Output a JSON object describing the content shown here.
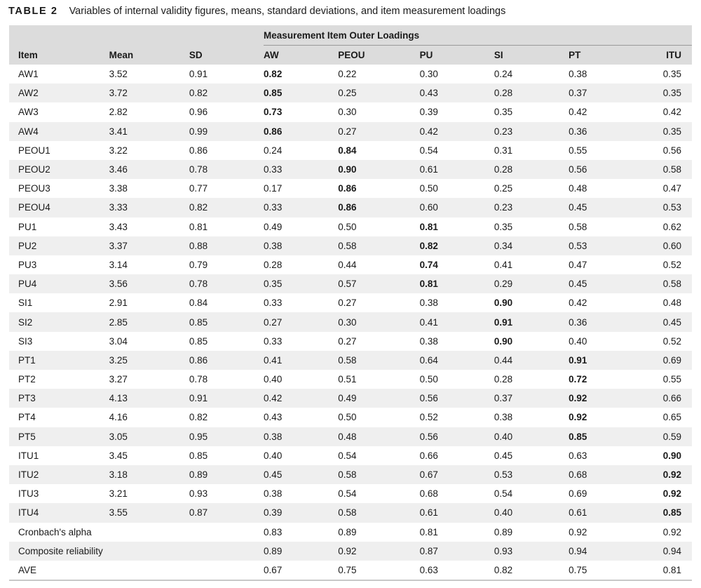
{
  "caption": {
    "label": "TABLE 2",
    "text": "Variables of internal validity figures, means, standard deviations, and item measurement loadings"
  },
  "group_header": "Measurement Item Outer Loadings",
  "columns": [
    "Item",
    "Mean",
    "SD",
    "AW",
    "PEOU",
    "PU",
    "SI",
    "PT",
    "ITU"
  ],
  "rows": [
    {
      "cells": [
        "AW1",
        "3.52",
        "0.91",
        "0.82",
        "0.22",
        "0.30",
        "0.24",
        "0.38",
        "0.35"
      ],
      "bold": 3
    },
    {
      "cells": [
        "AW2",
        "3.72",
        "0.82",
        "0.85",
        "0.25",
        "0.43",
        "0.28",
        "0.37",
        "0.35"
      ],
      "bold": 3
    },
    {
      "cells": [
        "AW3",
        "2.82",
        "0.96",
        "0.73",
        "0.30",
        "0.39",
        "0.35",
        "0.42",
        "0.42"
      ],
      "bold": 3
    },
    {
      "cells": [
        "AW4",
        "3.41",
        "0.99",
        "0.86",
        "0.27",
        "0.42",
        "0.23",
        "0.36",
        "0.35"
      ],
      "bold": 3
    },
    {
      "cells": [
        "PEOU1",
        "3.22",
        "0.86",
        "0.24",
        "0.84",
        "0.54",
        "0.31",
        "0.55",
        "0.56"
      ],
      "bold": 4
    },
    {
      "cells": [
        "PEOU2",
        "3.46",
        "0.78",
        "0.33",
        "0.90",
        "0.61",
        "0.28",
        "0.56",
        "0.58"
      ],
      "bold": 4
    },
    {
      "cells": [
        "PEOU3",
        "3.38",
        "0.77",
        "0.17",
        "0.86",
        "0.50",
        "0.25",
        "0.48",
        "0.47"
      ],
      "bold": 4
    },
    {
      "cells": [
        "PEOU4",
        "3.33",
        "0.82",
        "0.33",
        "0.86",
        "0.60",
        "0.23",
        "0.45",
        "0.53"
      ],
      "bold": 4
    },
    {
      "cells": [
        "PU1",
        "3.43",
        "0.81",
        "0.49",
        "0.50",
        "0.81",
        "0.35",
        "0.58",
        "0.62"
      ],
      "bold": 5
    },
    {
      "cells": [
        "PU2",
        "3.37",
        "0.88",
        "0.38",
        "0.58",
        "0.82",
        "0.34",
        "0.53",
        "0.60"
      ],
      "bold": 5
    },
    {
      "cells": [
        "PU3",
        "3.14",
        "0.79",
        "0.28",
        "0.44",
        "0.74",
        "0.41",
        "0.47",
        "0.52"
      ],
      "bold": 5
    },
    {
      "cells": [
        "PU4",
        "3.56",
        "0.78",
        "0.35",
        "0.57",
        "0.81",
        "0.29",
        "0.45",
        "0.58"
      ],
      "bold": 5
    },
    {
      "cells": [
        "SI1",
        "2.91",
        "0.84",
        "0.33",
        "0.27",
        "0.38",
        "0.90",
        "0.42",
        "0.48"
      ],
      "bold": 6
    },
    {
      "cells": [
        "SI2",
        "2.85",
        "0.85",
        "0.27",
        "0.30",
        "0.41",
        "0.91",
        "0.36",
        "0.45"
      ],
      "bold": 6
    },
    {
      "cells": [
        "SI3",
        "3.04",
        "0.85",
        "0.33",
        "0.27",
        "0.38",
        "0.90",
        "0.40",
        "0.52"
      ],
      "bold": 6
    },
    {
      "cells": [
        "PT1",
        "3.25",
        "0.86",
        "0.41",
        "0.58",
        "0.64",
        "0.44",
        "0.91",
        "0.69"
      ],
      "bold": 7
    },
    {
      "cells": [
        "PT2",
        "3.27",
        "0.78",
        "0.40",
        "0.51",
        "0.50",
        "0.28",
        "0.72",
        "0.55"
      ],
      "bold": 7
    },
    {
      "cells": [
        "PT3",
        "4.13",
        "0.91",
        "0.42",
        "0.49",
        "0.56",
        "0.37",
        "0.92",
        "0.66"
      ],
      "bold": 7
    },
    {
      "cells": [
        "PT4",
        "4.16",
        "0.82",
        "0.43",
        "0.50",
        "0.52",
        "0.38",
        "0.92",
        "0.65"
      ],
      "bold": 7
    },
    {
      "cells": [
        "PT5",
        "3.05",
        "0.95",
        "0.38",
        "0.48",
        "0.56",
        "0.40",
        "0.85",
        "0.59"
      ],
      "bold": 7
    },
    {
      "cells": [
        "ITU1",
        "3.45",
        "0.85",
        "0.40",
        "0.54",
        "0.66",
        "0.45",
        "0.63",
        "0.90"
      ],
      "bold": 8
    },
    {
      "cells": [
        "ITU2",
        "3.18",
        "0.89",
        "0.45",
        "0.58",
        "0.67",
        "0.53",
        "0.68",
        "0.92"
      ],
      "bold": 8
    },
    {
      "cells": [
        "ITU3",
        "3.21",
        "0.93",
        "0.38",
        "0.54",
        "0.68",
        "0.54",
        "0.69",
        "0.92"
      ],
      "bold": 8
    },
    {
      "cells": [
        "ITU4",
        "3.55",
        "0.87",
        "0.39",
        "0.58",
        "0.61",
        "0.40",
        "0.61",
        "0.85"
      ],
      "bold": 8
    },
    {
      "cells": [
        "Cronbach's alpha",
        "",
        "",
        "0.83",
        "0.89",
        "0.81",
        "0.89",
        "0.92",
        "0.92"
      ],
      "bold": -1
    },
    {
      "cells": [
        "Composite reliability",
        "",
        "",
        "0.89",
        "0.92",
        "0.87",
        "0.93",
        "0.94",
        "0.94"
      ],
      "bold": -1
    },
    {
      "cells": [
        "AVE",
        "",
        "",
        "0.67",
        "0.75",
        "0.63",
        "0.82",
        "0.75",
        "0.81"
      ],
      "bold": -1
    }
  ]
}
